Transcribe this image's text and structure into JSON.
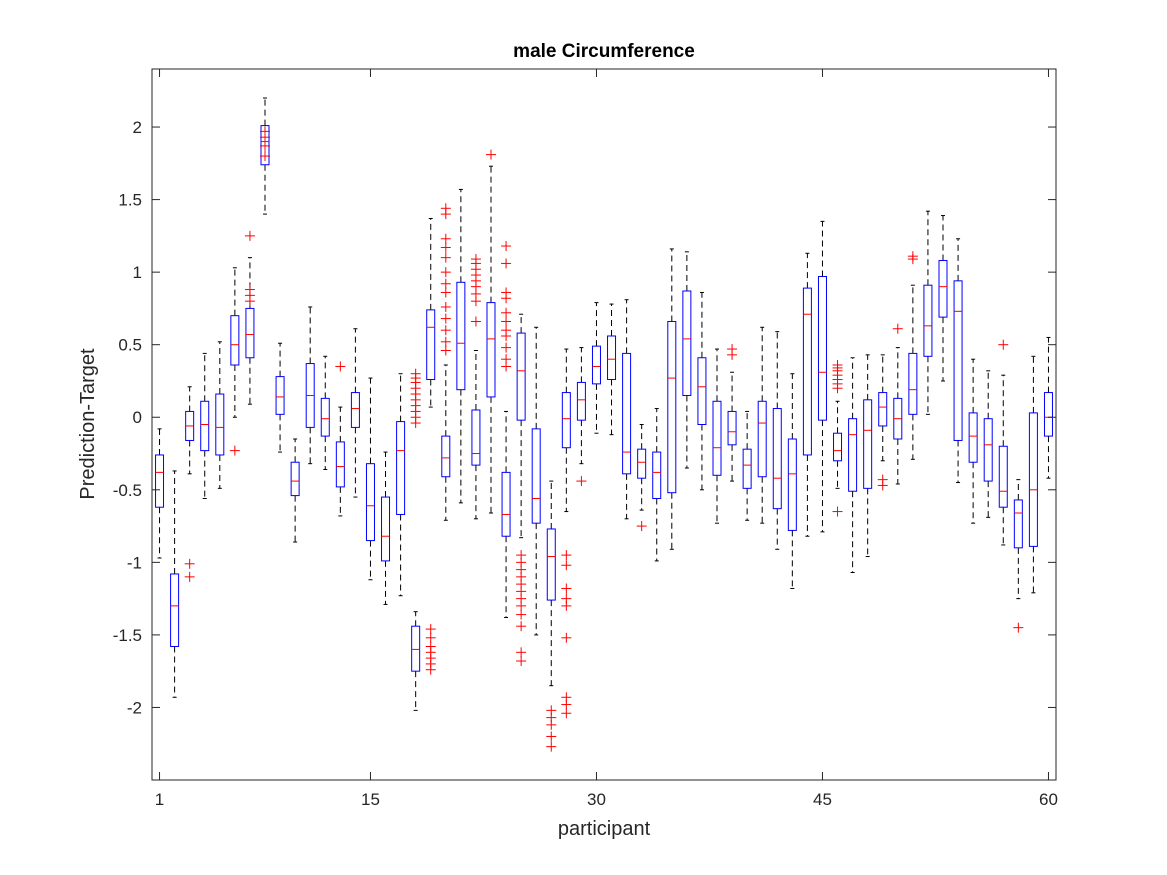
{
  "chart_data": {
    "type": "box",
    "title": "male Circumference",
    "xlabel": "participant",
    "ylabel": "Prediction-Target",
    "xlim": [
      0.5,
      60.5
    ],
    "ylim": [
      -2.5,
      2.4
    ],
    "xticks": [
      1,
      15,
      30,
      45,
      60
    ],
    "yticks": [
      -2,
      -1.5,
      -1,
      -0.5,
      0,
      0.5,
      1,
      1.5,
      2
    ],
    "ytick_labels": [
      "-2",
      "-1.5",
      "-1",
      "-0.5",
      "0",
      "0.5",
      "1",
      "1.5",
      "2"
    ],
    "grid": false,
    "colors": {
      "box": "#0000ff",
      "median": "#ff0000",
      "whisker": "#000000",
      "outlier": "#ff0000",
      "axis": "#262626"
    },
    "boxes": [
      {
        "x": 1,
        "q1": -0.62,
        "median": -0.38,
        "q3": -0.26,
        "lo": -0.97,
        "hi": -0.08,
        "out": []
      },
      {
        "x": 2,
        "q1": -1.58,
        "median": -1.3,
        "q3": -1.08,
        "lo": -1.93,
        "hi": -0.37,
        "out": []
      },
      {
        "x": 3,
        "q1": -0.16,
        "median": -0.06,
        "q3": 0.04,
        "lo": -0.39,
        "hi": 0.21,
        "out": [
          -1.01,
          -1.1
        ]
      },
      {
        "x": 4,
        "q1": -0.23,
        "median": -0.05,
        "q3": 0.11,
        "lo": -0.56,
        "hi": 0.44,
        "out": []
      },
      {
        "x": 5,
        "q1": -0.26,
        "median": -0.07,
        "q3": 0.16,
        "lo": -0.49,
        "hi": 0.52,
        "out": []
      },
      {
        "x": 6,
        "q1": 0.36,
        "median": 0.5,
        "q3": 0.7,
        "lo": 0.0,
        "hi": 1.03,
        "out": [
          -0.23
        ]
      },
      {
        "x": 7,
        "q1": 0.41,
        "median": 0.57,
        "q3": 0.75,
        "lo": 0.09,
        "hi": 1.1,
        "out": [
          1.25,
          0.8,
          0.84,
          0.88
        ]
      },
      {
        "x": 8,
        "q1": 1.74,
        "median": 1.9,
        "q3": 2.01,
        "lo": 1.4,
        "hi": 2.2,
        "out": [
          1.97,
          1.93,
          1.87,
          1.8
        ]
      },
      {
        "x": 9,
        "q1": 0.02,
        "median": 0.14,
        "q3": 0.28,
        "lo": -0.24,
        "hi": 0.51,
        "out": []
      },
      {
        "x": 10,
        "q1": -0.54,
        "median": -0.44,
        "q3": -0.31,
        "lo": -0.86,
        "hi": -0.15,
        "out": []
      },
      {
        "x": 11,
        "q1": -0.07,
        "median": 0.15,
        "q3": 0.37,
        "lo": -0.32,
        "hi": 0.76,
        "out": []
      },
      {
        "x": 12,
        "q1": -0.13,
        "median": -0.01,
        "q3": 0.13,
        "lo": -0.36,
        "hi": 0.42,
        "out": []
      },
      {
        "x": 13,
        "q1": -0.48,
        "median": -0.34,
        "q3": -0.17,
        "lo": -0.68,
        "hi": 0.07,
        "out": [
          0.35
        ]
      },
      {
        "x": 14,
        "q1": -0.07,
        "median": 0.06,
        "q3": 0.17,
        "lo": -0.55,
        "hi": 0.61,
        "out": []
      },
      {
        "x": 15,
        "q1": -0.85,
        "median": -0.61,
        "q3": -0.32,
        "lo": -1.12,
        "hi": 0.27,
        "out": []
      },
      {
        "x": 16,
        "q1": -0.99,
        "median": -0.82,
        "q3": -0.55,
        "lo": -1.29,
        "hi": -0.24,
        "out": []
      },
      {
        "x": 17,
        "q1": -0.67,
        "median": -0.23,
        "q3": -0.03,
        "lo": -1.23,
        "hi": 0.3,
        "out": []
      },
      {
        "x": 18,
        "q1": -1.75,
        "median": -1.6,
        "q3": -1.44,
        "lo": -2.02,
        "hi": -1.34,
        "out": [
          0.3,
          0.27,
          0.24,
          0.2,
          0.16,
          0.12,
          0.08,
          0.04,
          0.0,
          -0.04
        ]
      },
      {
        "x": 19,
        "q1": 0.26,
        "median": 0.62,
        "q3": 0.74,
        "lo": 0.07,
        "hi": 1.37,
        "out": [
          -1.46,
          -1.52,
          -1.58,
          -1.62,
          -1.66,
          -1.7,
          -1.74
        ]
      },
      {
        "x": 20,
        "q1": -0.41,
        "median": -0.28,
        "q3": -0.13,
        "lo": -0.71,
        "hi": 0.36,
        "out": [
          1.44,
          1.4,
          1.23,
          1.17,
          1.1,
          1.0,
          0.92,
          0.86,
          0.76,
          0.68,
          0.6,
          0.52,
          0.46
        ]
      },
      {
        "x": 21,
        "q1": 0.19,
        "median": 0.51,
        "q3": 0.93,
        "lo": -0.59,
        "hi": 1.57,
        "out": []
      },
      {
        "x": 22,
        "q1": -0.33,
        "median": -0.25,
        "q3": 0.05,
        "lo": -0.7,
        "hi": 0.46,
        "out": [
          1.09,
          1.06,
          1.02,
          0.98,
          0.94,
          0.9,
          0.85,
          0.8,
          0.66
        ]
      },
      {
        "x": 23,
        "q1": 0.14,
        "median": 0.54,
        "q3": 0.79,
        "lo": -0.66,
        "hi": 1.73,
        "out": [
          1.81
        ]
      },
      {
        "x": 24,
        "q1": -0.82,
        "median": -0.67,
        "q3": -0.38,
        "lo": -1.38,
        "hi": 0.04,
        "out": [
          1.18,
          1.06,
          0.86,
          0.82,
          0.72,
          0.66,
          0.6,
          0.56,
          0.48,
          0.4,
          0.35
        ]
      },
      {
        "x": 25,
        "q1": -0.02,
        "median": 0.32,
        "q3": 0.58,
        "lo": -0.83,
        "hi": 0.71,
        "out": [
          -0.95,
          -1.0,
          -1.05,
          -1.1,
          -1.15,
          -1.2,
          -1.25,
          -1.3,
          -1.36,
          -1.44,
          -1.62,
          -1.68
        ]
      },
      {
        "x": 26,
        "q1": -0.73,
        "median": -0.56,
        "q3": -0.08,
        "lo": -1.5,
        "hi": 0.62,
        "out": []
      },
      {
        "x": 27,
        "q1": -1.26,
        "median": -0.96,
        "q3": -0.77,
        "lo": -1.85,
        "hi": -0.44,
        "out": [
          -2.02,
          -2.07,
          -2.12,
          -2.2,
          -2.27
        ]
      },
      {
        "x": 28,
        "q1": -0.21,
        "median": -0.01,
        "q3": 0.17,
        "lo": -0.65,
        "hi": 0.47,
        "out": [
          -0.95,
          -1.02,
          -1.18,
          -1.25,
          -1.3,
          -1.52,
          -1.93,
          -1.98,
          -2.04
        ]
      },
      {
        "x": 29,
        "q1": -0.02,
        "median": 0.12,
        "q3": 0.24,
        "lo": -0.32,
        "hi": 0.48,
        "out": [
          -0.44
        ]
      },
      {
        "x": 30,
        "q1": 0.23,
        "median": 0.35,
        "q3": 0.49,
        "lo": -0.11,
        "hi": 0.79,
        "out": []
      },
      {
        "x": 31,
        "q1": 0.26,
        "median": 0.4,
        "q3": 0.56,
        "lo": -0.12,
        "hi": 0.78,
        "out": []
      },
      {
        "x": 32,
        "q1": -0.39,
        "median": -0.24,
        "q3": 0.44,
        "lo": -0.7,
        "hi": 0.81,
        "out": []
      },
      {
        "x": 33,
        "q1": -0.42,
        "median": -0.31,
        "q3": -0.22,
        "lo": -0.64,
        "hi": -0.05,
        "out": [
          -0.75
        ]
      },
      {
        "x": 34,
        "q1": -0.56,
        "median": -0.38,
        "q3": -0.24,
        "lo": -0.99,
        "hi": 0.06,
        "out": []
      },
      {
        "x": 35,
        "q1": -0.52,
        "median": 0.27,
        "q3": 0.66,
        "lo": -0.91,
        "hi": 1.16,
        "out": []
      },
      {
        "x": 36,
        "q1": 0.15,
        "median": 0.54,
        "q3": 0.87,
        "lo": -0.35,
        "hi": 1.14,
        "out": []
      },
      {
        "x": 37,
        "q1": -0.05,
        "median": 0.21,
        "q3": 0.41,
        "lo": -0.5,
        "hi": 0.86,
        "out": []
      },
      {
        "x": 38,
        "q1": -0.4,
        "median": -0.21,
        "q3": 0.11,
        "lo": -0.73,
        "hi": 0.47,
        "out": []
      },
      {
        "x": 39,
        "q1": -0.19,
        "median": -0.1,
        "q3": 0.04,
        "lo": -0.44,
        "hi": 0.31,
        "out": [
          0.47,
          0.43
        ]
      },
      {
        "x": 40,
        "q1": -0.49,
        "median": -0.33,
        "q3": -0.22,
        "lo": -0.71,
        "hi": 0.04,
        "out": []
      },
      {
        "x": 41,
        "q1": -0.41,
        "median": -0.04,
        "q3": 0.11,
        "lo": -0.73,
        "hi": 0.62,
        "out": []
      },
      {
        "x": 42,
        "q1": -0.63,
        "median": -0.42,
        "q3": 0.06,
        "lo": -0.91,
        "hi": 0.59,
        "out": []
      },
      {
        "x": 43,
        "q1": -0.78,
        "median": -0.39,
        "q3": -0.15,
        "lo": -1.18,
        "hi": 0.3,
        "out": []
      },
      {
        "x": 44,
        "q1": -0.26,
        "median": 0.71,
        "q3": 0.89,
        "lo": -0.82,
        "hi": 1.13,
        "out": []
      },
      {
        "x": 45,
        "q1": -0.02,
        "median": 0.31,
        "q3": 0.97,
        "lo": -0.79,
        "hi": 1.35,
        "out": []
      },
      {
        "x": 46,
        "q1": -0.3,
        "median": -0.23,
        "q3": -0.11,
        "lo": -0.49,
        "hi": 0.11,
        "out": [
          0.36,
          0.34,
          0.32,
          0.29,
          0.26,
          0.23,
          0.2,
          -0.65
        ]
      },
      {
        "x": 47,
        "q1": -0.51,
        "median": -0.12,
        "q3": -0.01,
        "lo": -1.07,
        "hi": 0.41,
        "out": []
      },
      {
        "x": 48,
        "q1": -0.49,
        "median": -0.09,
        "q3": 0.12,
        "lo": -0.96,
        "hi": 0.43,
        "out": []
      },
      {
        "x": 49,
        "q1": -0.06,
        "median": 0.07,
        "q3": 0.17,
        "lo": -0.3,
        "hi": 0.43,
        "out": [
          -0.43,
          -0.47
        ]
      },
      {
        "x": 50,
        "q1": -0.15,
        "median": -0.01,
        "q3": 0.13,
        "lo": -0.46,
        "hi": 0.48,
        "out": [
          0.61
        ]
      },
      {
        "x": 51,
        "q1": 0.02,
        "median": 0.19,
        "q3": 0.44,
        "lo": -0.29,
        "hi": 0.91,
        "out": [
          1.11,
          1.09
        ]
      },
      {
        "x": 52,
        "q1": 0.42,
        "median": 0.63,
        "q3": 0.91,
        "lo": 0.02,
        "hi": 1.42,
        "out": []
      },
      {
        "x": 53,
        "q1": 0.69,
        "median": 0.9,
        "q3": 1.08,
        "lo": 0.25,
        "hi": 1.39,
        "out": []
      },
      {
        "x": 54,
        "q1": -0.16,
        "median": 0.73,
        "q3": 0.94,
        "lo": -0.45,
        "hi": 1.23,
        "out": []
      },
      {
        "x": 55,
        "q1": -0.31,
        "median": -0.13,
        "q3": 0.03,
        "lo": -0.73,
        "hi": 0.4,
        "out": []
      },
      {
        "x": 56,
        "q1": -0.44,
        "median": -0.19,
        "q3": -0.01,
        "lo": -0.69,
        "hi": 0.32,
        "out": []
      },
      {
        "x": 57,
        "q1": -0.62,
        "median": -0.51,
        "q3": -0.2,
        "lo": -0.88,
        "hi": 0.29,
        "out": [
          0.5
        ]
      },
      {
        "x": 58,
        "q1": -0.9,
        "median": -0.66,
        "q3": -0.57,
        "lo": -1.25,
        "hi": -0.43,
        "out": [
          -1.45
        ]
      },
      {
        "x": 59,
        "q1": -0.89,
        "median": -0.5,
        "q3": 0.03,
        "lo": -1.21,
        "hi": 0.42,
        "out": []
      },
      {
        "x": 60,
        "q1": -0.13,
        "median": 0.0,
        "q3": 0.17,
        "lo": -0.42,
        "hi": 0.55,
        "out": []
      }
    ]
  }
}
